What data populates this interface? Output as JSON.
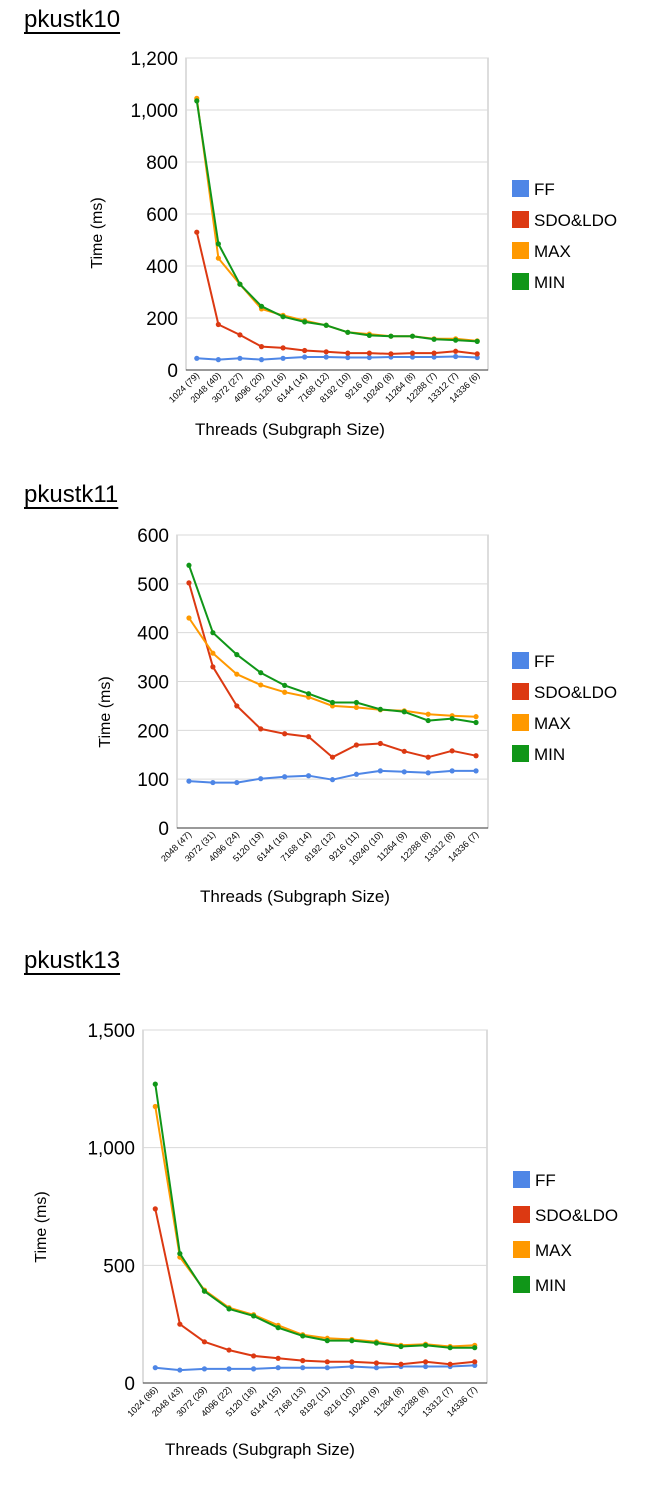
{
  "colors": {
    "FF": "#4e86e6",
    "SDO&LDO": "#dc3912",
    "MAX": "#ff9900",
    "MIN": "#109618",
    "grid": "#d9d9d9",
    "plot_border": "#bbbbbb"
  },
  "chart_data": [
    {
      "type": "line",
      "title": "pkustk10",
      "xlabel": "Threads (Subgraph Size)",
      "ylabel": "Time (ms)",
      "categories": [
        "1024 (79)",
        "2048 (40)",
        "3072 (27)",
        "4096 (20)",
        "5120 (16)",
        "6144 (14)",
        "7168 (12)",
        "8192 (10)",
        "9216 (9)",
        "10240 (8)",
        "11264 (8)",
        "12288 (7)",
        "13312 (7)",
        "14336 (6)"
      ],
      "ylim": [
        0,
        1200
      ],
      "yticks": [
        0,
        200,
        400,
        600,
        800,
        1000,
        1200
      ],
      "ytick_labels": [
        "0",
        "200",
        "400",
        "600",
        "800",
        "1,000",
        "1,200"
      ],
      "grid": true,
      "legend_position": "right",
      "series": [
        {
          "name": "FF",
          "values": [
            45,
            40,
            45,
            40,
            45,
            50,
            50,
            48,
            48,
            50,
            50,
            50,
            52,
            48
          ]
        },
        {
          "name": "SDO&LDO",
          "values": [
            530,
            175,
            135,
            90,
            85,
            75,
            70,
            65,
            65,
            62,
            65,
            65,
            72,
            62
          ]
        },
        {
          "name": "MAX",
          "values": [
            1045,
            430,
            330,
            235,
            210,
            190,
            172,
            145,
            138,
            130,
            130,
            120,
            120,
            112
          ]
        },
        {
          "name": "MIN",
          "values": [
            1035,
            485,
            330,
            245,
            205,
            185,
            172,
            145,
            133,
            130,
            130,
            118,
            115,
            110
          ]
        }
      ]
    },
    {
      "type": "line",
      "title": "pkustk11",
      "xlabel": "Threads (Subgraph Size)",
      "ylabel": "Time (ms)",
      "categories": [
        "2048 (47)",
        "3072 (31)",
        "4096 (24)",
        "5120 (19)",
        "6144 (16)",
        "7168 (14)",
        "8192 (12)",
        "9216 (11)",
        "10240 (10)",
        "11264 (9)",
        "12288 (8)",
        "13312 (8)",
        "14336 (7)"
      ],
      "ylim": [
        0,
        600
      ],
      "yticks": [
        0,
        100,
        200,
        300,
        400,
        500,
        600
      ],
      "ytick_labels": [
        "0",
        "100",
        "200",
        "300",
        "400",
        "500",
        "600"
      ],
      "grid": true,
      "legend_position": "right",
      "series": [
        {
          "name": "FF",
          "values": [
            96,
            93,
            93,
            101,
            105,
            107,
            99,
            110,
            117,
            115,
            113,
            117,
            117
          ]
        },
        {
          "name": "SDO&LDO",
          "values": [
            502,
            330,
            250,
            203,
            193,
            187,
            145,
            170,
            173,
            157,
            145,
            158,
            148
          ]
        },
        {
          "name": "MAX",
          "values": [
            430,
            358,
            315,
            293,
            278,
            268,
            250,
            247,
            242,
            240,
            233,
            230,
            228
          ]
        },
        {
          "name": "MIN",
          "values": [
            538,
            400,
            355,
            318,
            292,
            275,
            257,
            257,
            243,
            238,
            220,
            224,
            216
          ]
        }
      ]
    },
    {
      "type": "line",
      "title": "pkustk13",
      "xlabel": "Threads (Subgraph Size)",
      "ylabel": "Time (ms)",
      "categories": [
        "1024 (86)",
        "2048 (43)",
        "3072 (29)",
        "4096 (22)",
        "5120 (18)",
        "6144 (15)",
        "7168 (13)",
        "8192 (11)",
        "9216 (10)",
        "10240 (9)",
        "11264 (8)",
        "12288 (8)",
        "13312 (7)",
        "14336 (7)"
      ],
      "ylim": [
        0,
        1500
      ],
      "yticks": [
        0,
        500,
        1000,
        1500
      ],
      "ytick_labels": [
        "0",
        "500",
        "1,000",
        "1,500"
      ],
      "grid": true,
      "legend_position": "right",
      "series": [
        {
          "name": "FF",
          "values": [
            65,
            55,
            60,
            60,
            60,
            65,
            65,
            65,
            70,
            65,
            70,
            70,
            70,
            75
          ]
        },
        {
          "name": "SDO&LDO",
          "values": [
            740,
            250,
            175,
            140,
            115,
            105,
            95,
            90,
            90,
            85,
            80,
            90,
            80,
            90
          ]
        },
        {
          "name": "MAX",
          "values": [
            1175,
            535,
            395,
            320,
            290,
            245,
            205,
            190,
            185,
            175,
            160,
            165,
            155,
            160
          ]
        },
        {
          "name": "MIN",
          "values": [
            1270,
            550,
            390,
            315,
            285,
            235,
            200,
            180,
            180,
            170,
            155,
            160,
            150,
            150
          ]
        }
      ]
    }
  ]
}
